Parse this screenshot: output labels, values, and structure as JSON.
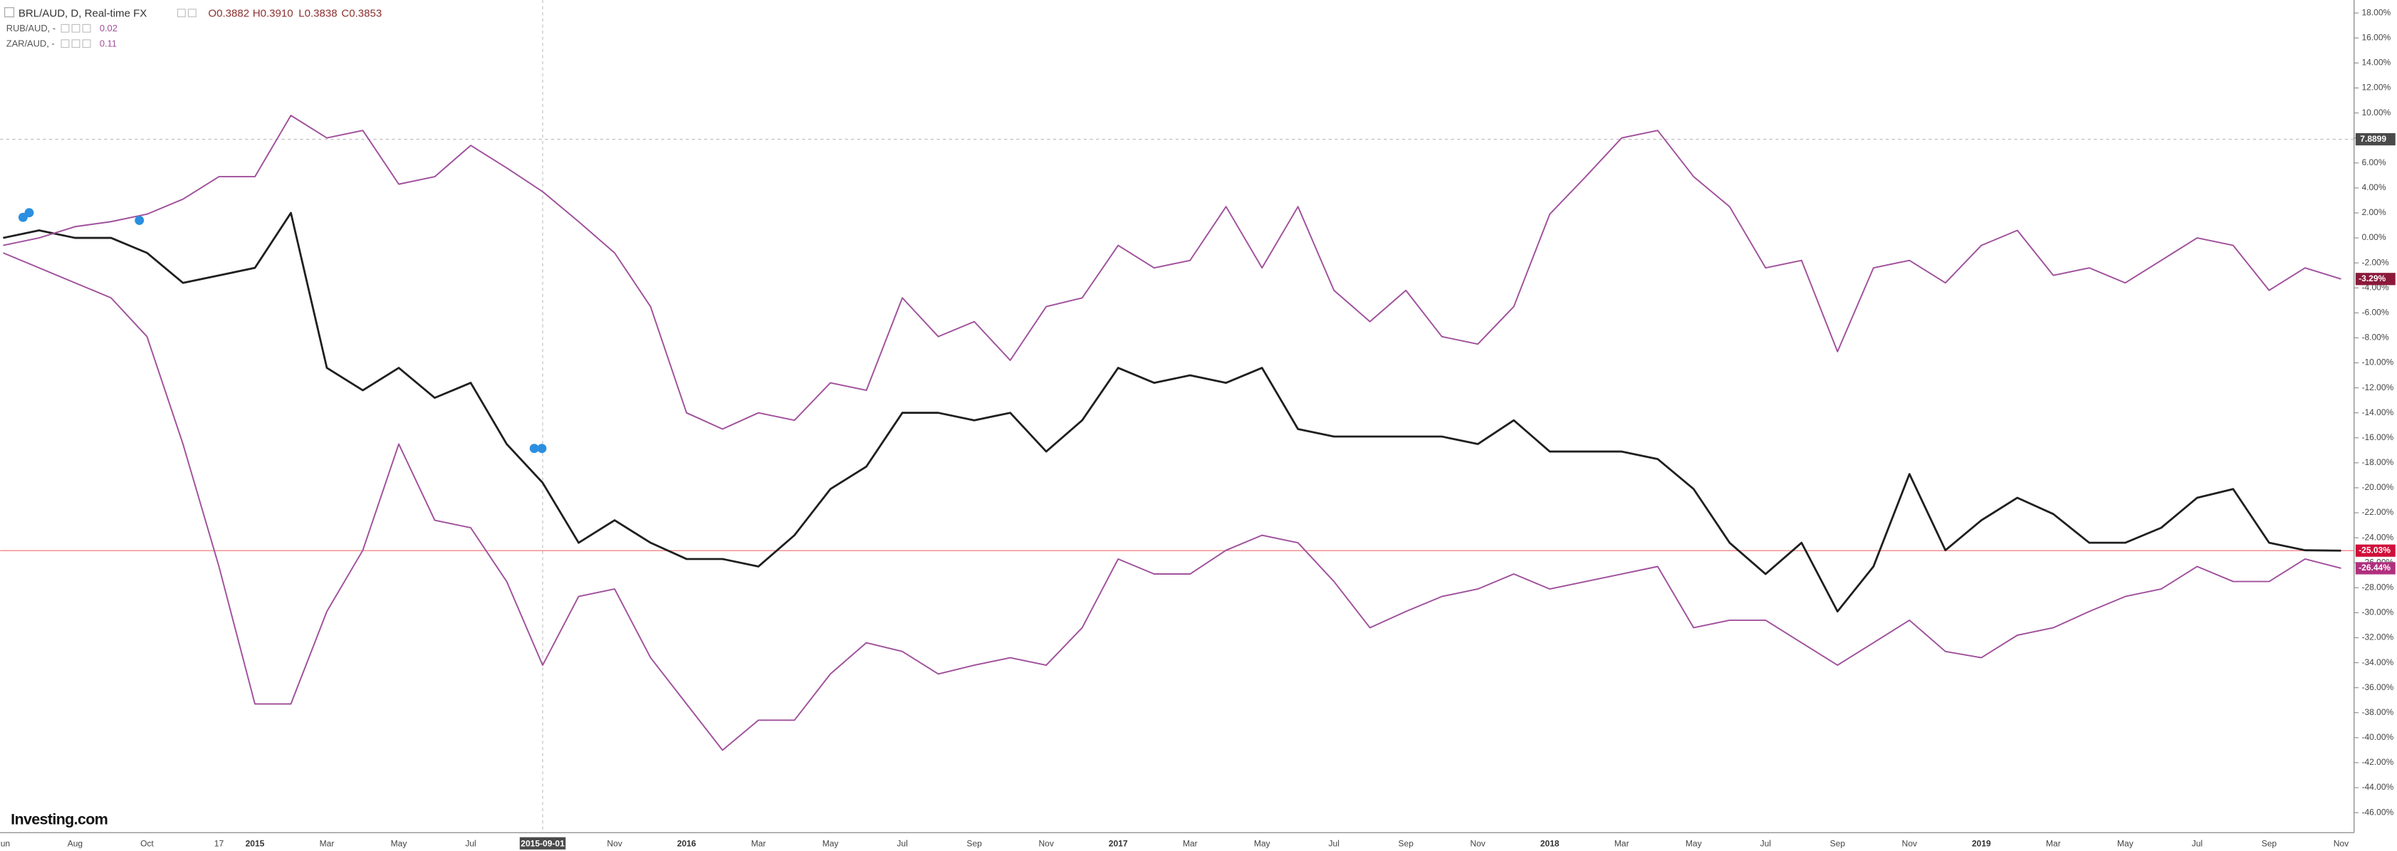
{
  "chart_data": {
    "type": "line",
    "header": {
      "ohlc": [
        "O0.3882",
        "H0.3910",
        "L0.3838",
        "C0.3853"
      ]
    },
    "logo": "Investing.com",
    "crosshair_price": "7.8899",
    "categories": [
      "Jun",
      null,
      "Aug",
      null,
      "Oct",
      null,
      "17",
      "2015",
      null,
      "Mar",
      null,
      "May",
      null,
      "Jul",
      null,
      "2015-09-01",
      null,
      "Nov",
      null,
      "2016",
      null,
      "Mar",
      null,
      "May",
      null,
      "Jul",
      null,
      "Sep",
      null,
      "Nov",
      null,
      "2017",
      null,
      "Mar",
      null,
      "May",
      null,
      "Jul",
      null,
      "Sep",
      null,
      "Nov",
      null,
      "2018",
      null,
      "Mar",
      null,
      "May",
      null,
      "Jul",
      null,
      "Sep",
      null,
      "Nov",
      null,
      "2019",
      null,
      "Mar",
      null,
      "May",
      null,
      "Jul",
      null,
      "Sep",
      null,
      "Nov"
    ],
    "series": [
      {
        "name": "BRL/AUD, D, Real-time FX",
        "color": "#1f1f1f",
        "last_label": "-25.03%",
        "label_color": "#d0103a",
        "values": [
          0,
          0.6,
          0,
          0,
          -1.2,
          -3.6,
          -3,
          -2.4,
          2,
          -10.4,
          -12.2,
          -10.4,
          -12.8,
          -11.6,
          -16.5,
          -19.6,
          -24.4,
          -22.6,
          -24.4,
          -25.7,
          -25.7,
          -26.3,
          -23.8,
          -20.1,
          -18.3,
          -14,
          -14,
          -14.6,
          -14,
          -17.1,
          -14.6,
          -10.4,
          -11.6,
          -11,
          -11.6,
          -10.4,
          -15.3,
          -15.9,
          -15.9,
          -15.9,
          -15.9,
          -16.5,
          -14.6,
          -17.1,
          -17.1,
          -17.1,
          -17.7,
          -20.1,
          -24.4,
          -26.9,
          -24.4,
          -29.9,
          -26.3,
          -18.9,
          -25,
          -22.6,
          -20.8,
          -22.1,
          -24.4,
          -24.4,
          -23.2,
          -20.8,
          -20.1,
          -24.4,
          -25,
          -25.03
        ]
      },
      {
        "name": "RUB/AUD, -",
        "header_value": "0.02",
        "color": "#a0509c",
        "last_label": "-26.44%",
        "label_color": "#b0307e",
        "values": [
          -1.2,
          -2.4,
          -3.6,
          -4.8,
          -7.9,
          -16.5,
          -26.3,
          -37.3,
          -37.3,
          -29.9,
          -25,
          -16.5,
          -22.6,
          -23.2,
          -27.5,
          -34.2,
          -28.7,
          -28.1,
          -33.6,
          -37.3,
          -41,
          -38.6,
          -38.6,
          -34.9,
          -32.4,
          -33.1,
          -34.9,
          -34.2,
          -33.6,
          -34.2,
          -31.2,
          -25.7,
          -26.9,
          -26.9,
          -25,
          -23.8,
          -24.4,
          -27.5,
          -31.2,
          -29.9,
          -28.7,
          -28.1,
          -26.9,
          -28.1,
          -27.5,
          -26.9,
          -26.3,
          -31.2,
          -30.6,
          -30.6,
          -32.4,
          -34.2,
          -32.4,
          -30.6,
          -33.1,
          -33.6,
          -31.8,
          -31.2,
          -29.9,
          -28.7,
          -28.1,
          -26.3,
          -27.5,
          -27.5,
          -25.7,
          -26.44
        ]
      },
      {
        "name": "ZAR/AUD, -",
        "header_value": "0.11",
        "color": "#a0509c",
        "last_label": "-3.29%",
        "label_color": "#8b1a3a",
        "values": [
          -0.6,
          0,
          0.9,
          1.3,
          1.9,
          3.1,
          4.9,
          4.9,
          9.8,
          8,
          8.6,
          4.3,
          4.9,
          7.4,
          5.6,
          3.7,
          1.3,
          -1.2,
          -5.5,
          -14,
          -15.3,
          -14,
          -14.6,
          -11.6,
          -12.2,
          -4.8,
          -7.9,
          -6.7,
          -9.8,
          -5.5,
          -4.8,
          -0.6,
          -2.4,
          -1.8,
          2.5,
          -2.4,
          2.5,
          -4.2,
          -6.7,
          -4.2,
          -7.9,
          -8.5,
          -5.5,
          1.9,
          4.9,
          8,
          8.6,
          4.9,
          2.5,
          -2.4,
          -1.8,
          -9.1,
          -2.4,
          -1.8,
          -3.6,
          -0.6,
          0.6,
          -3,
          -2.4,
          -3.6,
          -1.8,
          0,
          -0.6,
          -4.2,
          -2.4,
          -3.29
        ]
      }
    ],
    "ylim": [
      -47.6,
      19.04
    ],
    "yticks": [
      {
        "value": 18,
        "label": "18.00%"
      },
      {
        "value": 16,
        "label": "16.00%"
      },
      {
        "value": 14,
        "label": "14.00%"
      },
      {
        "value": 12,
        "label": "12.00%"
      },
      {
        "value": 10,
        "label": "10.00%"
      },
      {
        "value": 8,
        "label": "8.00%"
      },
      {
        "value": 6,
        "label": "6.00%"
      },
      {
        "value": 4,
        "label": "4.00%"
      },
      {
        "value": 2,
        "label": "2.00%"
      },
      {
        "value": 0,
        "label": "0.00%"
      },
      {
        "value": -2,
        "label": "-2.00%"
      },
      {
        "value": -4,
        "label": "-4.00%"
      },
      {
        "value": -6,
        "label": "-6.00%"
      },
      {
        "value": -8,
        "label": "-8.00%"
      },
      {
        "value": -10,
        "label": "-10.00%"
      },
      {
        "value": -12,
        "label": "-12.00%"
      },
      {
        "value": -14,
        "label": "-14.00%"
      },
      {
        "value": -16,
        "label": "-16.00%"
      },
      {
        "value": -18,
        "label": "-18.00%"
      },
      {
        "value": -20,
        "label": "-20.00%"
      },
      {
        "value": -22,
        "label": "-22.00%"
      },
      {
        "value": -24,
        "label": "-24.00%"
      },
      {
        "value": -26,
        "label": "-26.00%"
      },
      {
        "value": -28,
        "label": "-28.00%"
      },
      {
        "value": -30,
        "label": "-30.00%"
      },
      {
        "value": -32,
        "label": "-32.00%"
      },
      {
        "value": -34,
        "label": "-34.00%"
      },
      {
        "value": -36,
        "label": "-36.00%"
      },
      {
        "value": -38,
        "label": "-38.00%"
      },
      {
        "value": -40,
        "label": "-40.00%"
      },
      {
        "value": -42,
        "label": "-42.00%"
      },
      {
        "value": -44,
        "label": "-44.00%"
      },
      {
        "value": -46,
        "label": "-46.00%"
      }
    ],
    "grid": false
  }
}
